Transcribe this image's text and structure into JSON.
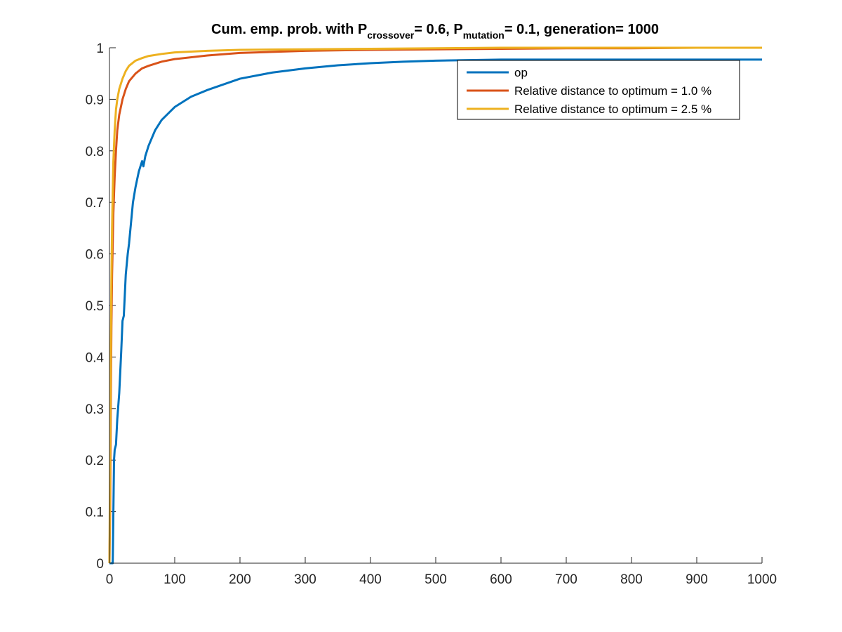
{
  "chart_data": {
    "type": "line",
    "title": {
      "prefix": "Cum. emp. prob. with P",
      "sub1": "crossover",
      "mid": "= 0.6, P",
      "sub2": "mutation",
      "suffix": "= 0.1, generation= 1000"
    },
    "xlabel": "",
    "ylabel": "",
    "xlim": [
      0,
      1000
    ],
    "ylim": [
      0,
      1
    ],
    "xticks": [
      "0",
      "100",
      "200",
      "300",
      "400",
      "500",
      "600",
      "700",
      "800",
      "900",
      "1000"
    ],
    "yticks": [
      "0",
      "0.1",
      "0.2",
      "0.3",
      "0.4",
      "0.5",
      "0.6",
      "0.7",
      "0.8",
      "0.9",
      "1"
    ],
    "grid": false,
    "legend_position": "top-right",
    "series": [
      {
        "name": "op",
        "color": "#0072BD",
        "x": [
          0,
          5,
          6,
          7,
          8,
          10,
          12,
          15,
          18,
          20,
          22,
          25,
          28,
          30,
          33,
          36,
          40,
          45,
          50,
          52,
          55,
          60,
          70,
          80,
          100,
          125,
          150,
          200,
          250,
          300,
          350,
          400,
          450,
          500,
          600,
          700,
          800,
          900,
          1000
        ],
        "y": [
          0,
          0,
          0.1,
          0.2,
          0.22,
          0.23,
          0.28,
          0.33,
          0.41,
          0.47,
          0.48,
          0.56,
          0.6,
          0.62,
          0.66,
          0.7,
          0.73,
          0.76,
          0.78,
          0.77,
          0.79,
          0.81,
          0.84,
          0.86,
          0.885,
          0.905,
          0.918,
          0.94,
          0.952,
          0.96,
          0.966,
          0.97,
          0.973,
          0.975,
          0.977,
          0.977,
          0.977,
          0.977,
          0.977
        ]
      },
      {
        "name": "Relative distance to optimum = 1.0 %",
        "color": "#D95319",
        "x": [
          0,
          1,
          2,
          3,
          4,
          5,
          6,
          8,
          10,
          12,
          15,
          20,
          25,
          30,
          40,
          50,
          60,
          80,
          100,
          150,
          200,
          300,
          400,
          500,
          600,
          700,
          800,
          900,
          1000
        ],
        "y": [
          0,
          0.1,
          0.3,
          0.46,
          0.56,
          0.62,
          0.68,
          0.75,
          0.8,
          0.84,
          0.87,
          0.9,
          0.92,
          0.935,
          0.95,
          0.96,
          0.965,
          0.973,
          0.978,
          0.985,
          0.99,
          0.994,
          0.996,
          0.997,
          0.998,
          0.999,
          0.999,
          1.0,
          1.0
        ]
      },
      {
        "name": "Relative distance to optimum = 2.5 %",
        "color": "#EDB120",
        "x": [
          0,
          1,
          2,
          3,
          4,
          5,
          6,
          8,
          10,
          12,
          15,
          20,
          25,
          30,
          40,
          50,
          60,
          80,
          100,
          150,
          200,
          300,
          400,
          500,
          600,
          700,
          800,
          900,
          1000
        ],
        "y": [
          0,
          0.2,
          0.4,
          0.55,
          0.65,
          0.72,
          0.78,
          0.84,
          0.88,
          0.9,
          0.92,
          0.94,
          0.955,
          0.965,
          0.975,
          0.98,
          0.984,
          0.988,
          0.991,
          0.994,
          0.996,
          0.997,
          0.998,
          0.999,
          1.0,
          1.0,
          1.0,
          1.0,
          1.0
        ]
      }
    ]
  }
}
